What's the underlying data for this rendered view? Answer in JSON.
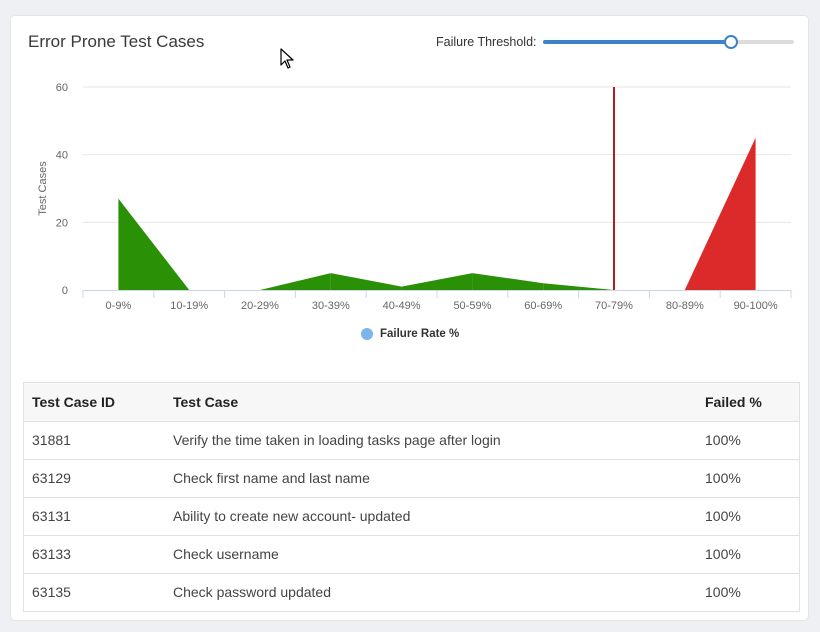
{
  "panel": {
    "title": "Error Prone Test Cases",
    "threshold_label": "Failure Threshold:",
    "threshold_value_fraction": 0.75
  },
  "chart_data": {
    "type": "area",
    "categories": [
      "0-9%",
      "10-19%",
      "20-29%",
      "30-39%",
      "40-49%",
      "50-59%",
      "60-69%",
      "70-79%",
      "80-89%",
      "90-100%"
    ],
    "series": [
      {
        "name": "Failure Rate %",
        "values": [
          27,
          0,
          0,
          5,
          1,
          5,
          2,
          0,
          0,
          45
        ]
      }
    ],
    "ylabel": "Test Cases",
    "ylim": [
      0,
      60
    ],
    "yticks": [
      0,
      20,
      40,
      60
    ],
    "threshold_category": "70-79%",
    "colors": {
      "below": "#2a9006",
      "above": "#dc2a2a",
      "threshold_line": "#b71c1c",
      "grid": "#e6e6e6",
      "legend": "#7cb5ec"
    },
    "legend_position": "bottom-center",
    "grid": true
  },
  "table": {
    "headers": [
      "Test Case ID",
      "Test Case",
      "Failed %"
    ],
    "rows": [
      [
        "31881",
        "Verify the time taken in loading tasks page after login",
        "100%"
      ],
      [
        "63129",
        "Check first name and last name",
        "100%"
      ],
      [
        "63131",
        "Ability to create new account- updated",
        "100%"
      ],
      [
        "63133",
        "Check username",
        "100%"
      ],
      [
        "63135",
        "Check password updated",
        "100%"
      ]
    ]
  }
}
